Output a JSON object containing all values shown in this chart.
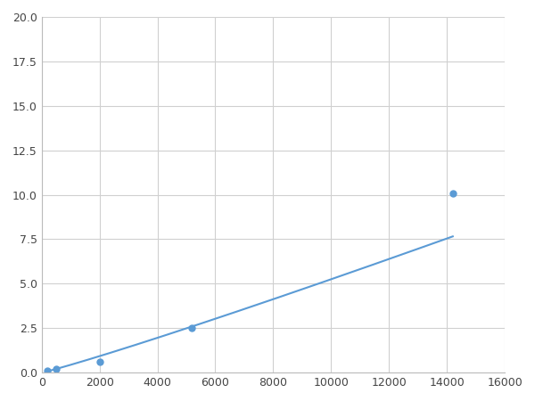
{
  "x": [
    200,
    500,
    2000,
    5200,
    14200
  ],
  "y": [
    0.1,
    0.2,
    0.6,
    2.5,
    10.1
  ],
  "line_color": "#5b9bd5",
  "marker_color": "#5b9bd5",
  "marker_size": 5,
  "line_width": 1.5,
  "xlim": [
    0,
    16000
  ],
  "ylim": [
    0,
    20
  ],
  "xticks": [
    0,
    2000,
    4000,
    6000,
    8000,
    10000,
    12000,
    14000,
    16000
  ],
  "yticks": [
    0.0,
    2.5,
    5.0,
    7.5,
    10.0,
    12.5,
    15.0,
    17.5,
    20.0
  ],
  "grid": true,
  "background_color": "#ffffff",
  "figure_bg": "#ffffff"
}
